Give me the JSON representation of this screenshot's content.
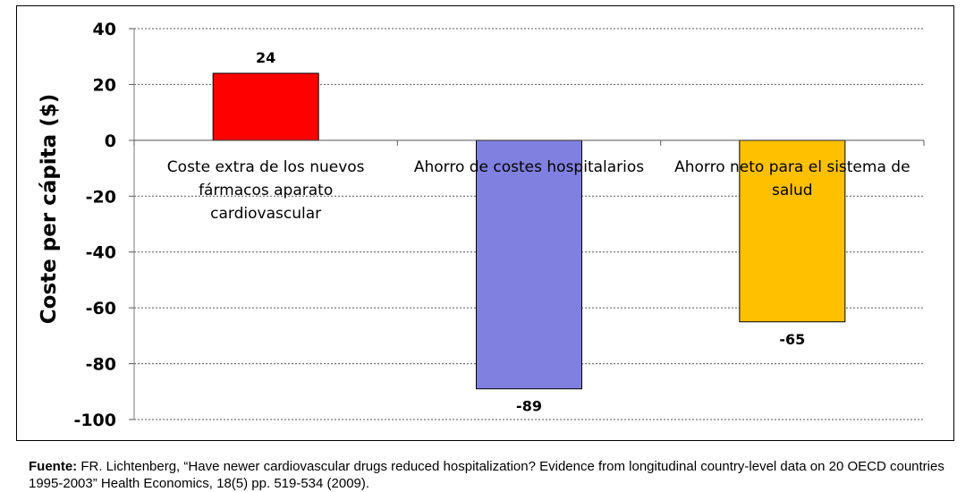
{
  "chart_data": {
    "type": "bar",
    "ylabel": "Coste per cápita ($)",
    "ylim": [
      -100,
      40
    ],
    "yticks": [
      40,
      20,
      0,
      -20,
      -40,
      -60,
      -80,
      -100
    ],
    "grid": true,
    "categories": [
      [
        "Coste extra de los nuevos",
        "fármacos aparato",
        "cardiovascular"
      ],
      [
        "Ahorro de costes hospitalarios"
      ],
      [
        "Ahorro neto para el sistema de",
        "salud"
      ]
    ],
    "values": [
      24,
      -89,
      -65
    ],
    "data_labels": [
      "24",
      "-89",
      "-65"
    ],
    "colors": [
      "#ff0000",
      "#8080e0",
      "#ffc000"
    ]
  },
  "source": {
    "label": "Fuente:",
    "text": " FR. Lichtenberg, “Have newer cardiovascular drugs reduced hospitalization? Evidence from longitudinal country-level data on 20 OECD countries 1995-2003” Health Economics, 18(5) pp.  519-534  (2009)."
  }
}
